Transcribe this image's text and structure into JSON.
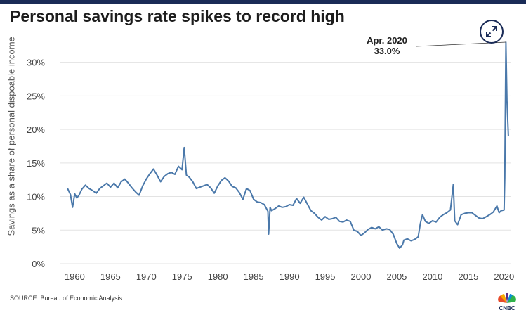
{
  "header": {
    "title": "Personal savings rate spikes to record high"
  },
  "footer": {
    "source": "SOURCE: Bureau of Economic Analysis",
    "logo_text": "CNBC"
  },
  "colors": {
    "line": "#4a78aa",
    "topbar": "#1a2b57",
    "grid": "#e3e3e3"
  },
  "icons": {
    "expand": "expand-arrows-icon",
    "logo": "peacock-logo-icon"
  },
  "chart_data": {
    "type": "line",
    "title": "Personal savings rate spikes to record high",
    "xlabel": "",
    "ylabel": "Savings as a share of personal dispoable income",
    "xlim": [
      1958,
      2021
    ],
    "ylim": [
      0,
      33
    ],
    "y_ticks": [
      0,
      5,
      10,
      15,
      20,
      25,
      30
    ],
    "y_tick_labels": [
      "0%",
      "5%",
      "10%",
      "15%",
      "20%",
      "25%",
      "30%"
    ],
    "x_ticks": [
      1960,
      1965,
      1970,
      1975,
      1980,
      1985,
      1990,
      1995,
      2000,
      2005,
      2010,
      2015,
      2020
    ],
    "x_tick_labels": [
      "1960",
      "1965",
      "1970",
      "1975",
      "1980",
      "1985",
      "1990",
      "1995",
      "2000",
      "2005",
      "2010",
      "2015",
      "2020"
    ],
    "grid": "horizontal",
    "annotation": {
      "label": "Apr. 2020",
      "value_label": "33.0%",
      "x": 2020.25,
      "y": 33.0
    },
    "series": [
      {
        "x": [
          1959,
          1959.4,
          1959.7,
          1960,
          1960.3,
          1960.6,
          1961,
          1961.5,
          1962,
          1962.5,
          1963,
          1963.5,
          1964,
          1964.5,
          1965,
          1965.5,
          1966,
          1966.5,
          1967,
          1967.5,
          1968,
          1968.5,
          1969,
          1969.5,
          1970,
          1970.5,
          1971,
          1971.5,
          1972,
          1972.5,
          1973,
          1973.5,
          1974,
          1974.5,
          1975,
          1975.3,
          1975.6,
          1976,
          1976.5,
          1977,
          1977.5,
          1978,
          1978.5,
          1979,
          1979.5,
          1980,
          1980.5,
          1981,
          1981.5,
          1982,
          1982.5,
          1983,
          1983.5,
          1984,
          1984.5,
          1985,
          1985.5,
          1986,
          1986.5,
          1987,
          1987.1,
          1987.3,
          1987.5,
          1988,
          1988.5,
          1989,
          1989.5,
          1990,
          1990.5,
          1991,
          1991.5,
          1992,
          1992.5,
          1993,
          1993.5,
          1994,
          1994.5,
          1995,
          1995.5,
          1996,
          1996.5,
          1997,
          1997.5,
          1998,
          1998.5,
          1999,
          1999.5,
          2000,
          2000.5,
          2001,
          2001.5,
          2002,
          2002.5,
          2003,
          2003.5,
          2004,
          2004.5,
          2005,
          2005.4,
          2005.8,
          2006,
          2006.5,
          2007,
          2007.5,
          2008,
          2008.3,
          2008.6,
          2009,
          2009.5,
          2010,
          2010.5,
          2011,
          2011.5,
          2012,
          2012.5,
          2012.9,
          2013.1,
          2013.5,
          2014,
          2014.5,
          2015,
          2015.5,
          2016,
          2016.5,
          2017,
          2017.5,
          2018,
          2018.5,
          2019,
          2019.3,
          2019.6,
          2020,
          2020.1,
          2020.25,
          2020.4,
          2020.6
        ],
        "values": [
          11.2,
          10.3,
          8.4,
          10.4,
          9.8,
          10.2,
          11.1,
          11.7,
          11.2,
          10.9,
          10.5,
          11.2,
          11.6,
          12.0,
          11.4,
          12.0,
          11.3,
          12.2,
          12.6,
          12.0,
          11.3,
          10.7,
          10.2,
          11.6,
          12.6,
          13.4,
          14.1,
          13.2,
          12.2,
          13.0,
          13.4,
          13.6,
          13.3,
          14.5,
          14.0,
          17.3,
          13.2,
          12.9,
          12.2,
          11.2,
          11.4,
          11.6,
          11.8,
          11.3,
          10.5,
          11.6,
          12.4,
          12.8,
          12.3,
          11.5,
          11.3,
          10.6,
          9.6,
          11.2,
          10.9,
          9.6,
          9.2,
          9.1,
          8.8,
          7.8,
          4.4,
          8.4,
          7.9,
          8.2,
          8.6,
          8.4,
          8.5,
          8.8,
          8.7,
          9.7,
          9.0,
          9.9,
          8.9,
          7.9,
          7.5,
          6.9,
          6.5,
          7.0,
          6.6,
          6.7,
          6.9,
          6.3,
          6.2,
          6.5,
          6.3,
          5.0,
          4.8,
          4.2,
          4.6,
          5.1,
          5.4,
          5.2,
          5.5,
          5.0,
          5.2,
          5.1,
          4.4,
          3.0,
          2.3,
          2.8,
          3.5,
          3.7,
          3.4,
          3.6,
          4.0,
          6.0,
          7.3,
          6.3,
          6.0,
          6.4,
          6.2,
          6.9,
          7.3,
          7.6,
          8.0,
          11.8,
          6.4,
          5.8,
          7.3,
          7.5,
          7.6,
          7.6,
          7.2,
          6.8,
          6.7,
          7.0,
          7.3,
          7.7,
          8.6,
          7.6,
          7.9,
          8.0,
          12.8,
          33.0,
          24.3,
          19.0
        ]
      }
    ]
  }
}
